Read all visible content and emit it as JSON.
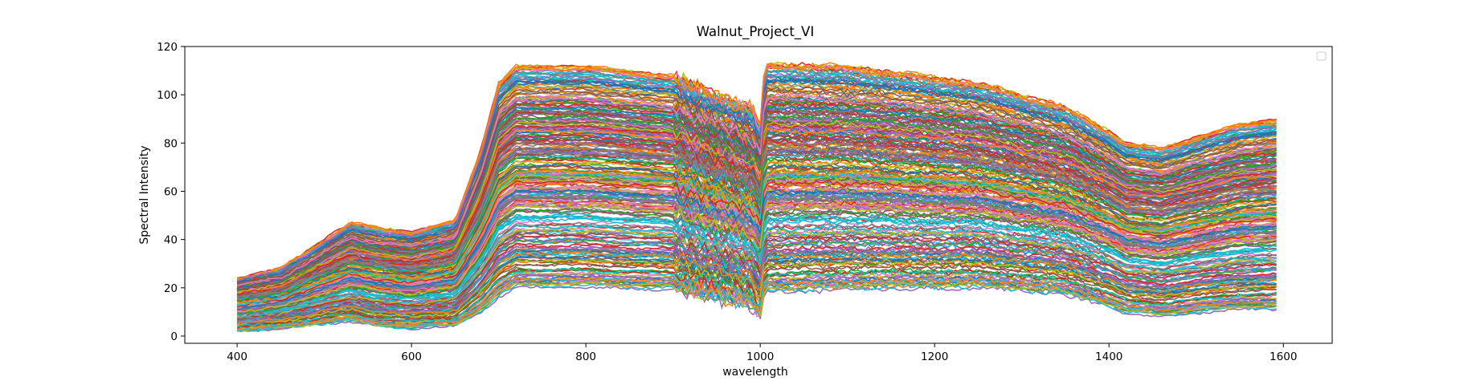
{
  "chart_data": {
    "type": "line",
    "title": "Walnut_Project_VI",
    "xlabel": "wavelength",
    "ylabel": "Spectral Intensity",
    "xlim": [
      340,
      1656
    ],
    "ylim": [
      -3,
      120
    ],
    "xticks": [
      400,
      600,
      800,
      1000,
      1200,
      1400,
      1600
    ],
    "yticks": [
      0,
      20,
      40,
      60,
      80,
      100,
      120
    ],
    "grid": false,
    "legend": "upper right, empty",
    "colors": [
      "#1f77b4",
      "#ff7f0e",
      "#2ca02c",
      "#d62728",
      "#9467bd",
      "#8c564b",
      "#e377c2",
      "#7f7f7f",
      "#bcbd22",
      "#17becf"
    ],
    "series_count": 300,
    "x": [
      400,
      450,
      500,
      530,
      560,
      600,
      650,
      680,
      700,
      720,
      800,
      900,
      950,
      990,
      1000,
      1005,
      1100,
      1250,
      1350,
      1400,
      1420,
      1460,
      1550,
      1595
    ],
    "envelope": {
      "upper": [
        24,
        28,
        40,
        47,
        45,
        43,
        48,
        78,
        105,
        112,
        112,
        108,
        100,
        95,
        88,
        113,
        112,
        105,
        95,
        85,
        80,
        78,
        88,
        90
      ],
      "lower": [
        2,
        3,
        5,
        6,
        4,
        3,
        4,
        10,
        16,
        20,
        20,
        19,
        15,
        12,
        7,
        18,
        19,
        20,
        17,
        12,
        9,
        8,
        11,
        11
      ]
    }
  }
}
